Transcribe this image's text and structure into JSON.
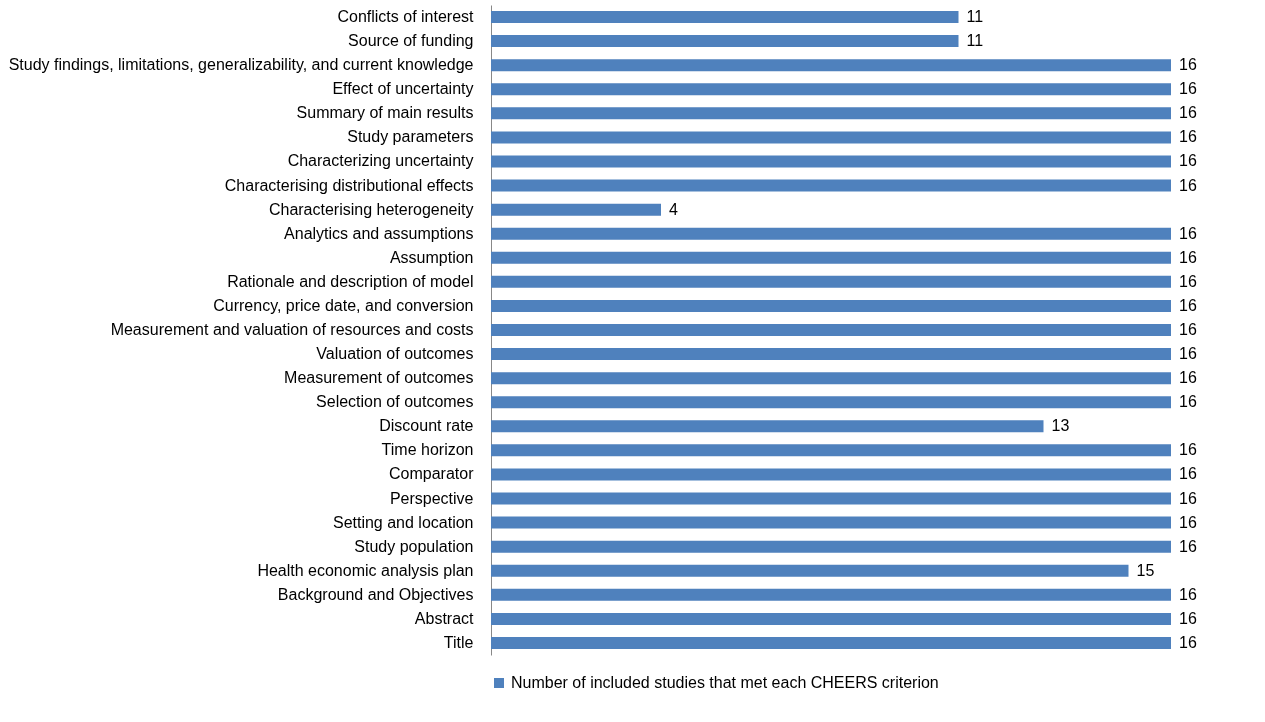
{
  "chart_data": {
    "type": "bar",
    "orientation": "horizontal",
    "data_labels": true,
    "legend": "bottom",
    "grid": false,
    "categories": [
      "Conflicts of interest",
      "Source of funding",
      "Study findings, limitations, generalizability, and current knowledge",
      "Effect of uncertainty",
      "Summary of main results",
      "Study parameters",
      "Characterizing uncertainty",
      "Characterising distributional effects",
      "Characterising heterogeneity",
      "Analytics and assumptions",
      "Assumption",
      "Rationale and description of model",
      "Currency, price date, and conversion",
      "Measurement and valuation of resources and costs",
      "Valuation of outcomes",
      "Measurement of outcomes",
      "Selection of outcomes",
      "Discount rate",
      "Time horizon",
      "Comparator",
      "Perspective",
      "Setting and location",
      "Study population",
      "Health economic analysis plan",
      "Background and Objectives",
      "Abstract",
      "Title"
    ],
    "series": [
      {
        "name": "Number of included studies that met each CHEERS criterion",
        "color": "#4f81bd",
        "values": [
          11,
          11,
          16,
          16,
          16,
          16,
          16,
          16,
          4,
          16,
          16,
          16,
          16,
          16,
          16,
          16,
          16,
          13,
          16,
          16,
          16,
          16,
          16,
          15,
          16,
          16,
          16
        ]
      }
    ]
  }
}
